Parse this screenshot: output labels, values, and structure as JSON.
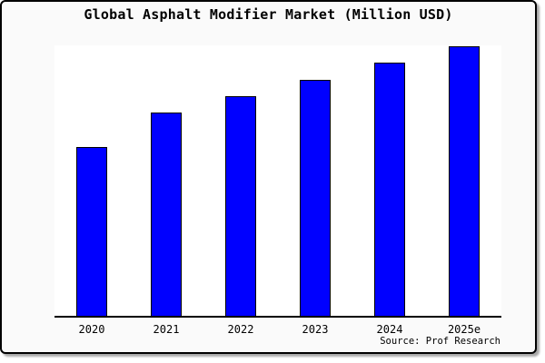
{
  "chart_data": {
    "type": "bar",
    "title": "Global Asphalt Modifier Market (Million USD)",
    "categories": [
      "2020",
      "2021",
      "2022",
      "2023",
      "2024",
      "2025e"
    ],
    "values": [
      62.9,
      75.6,
      81.6,
      87.6,
      94.0,
      100.0
    ],
    "units": "relative index (2025e = 100); chart shows no y-axis scale",
    "xlabel": "",
    "ylabel": "",
    "ylim": [
      0,
      100.5
    ],
    "grid": false,
    "legend": false,
    "y_axis_visible": false,
    "bar_color": "#0000ff",
    "bar_edge_color": "#000000",
    "plot_background": "#ffffff",
    "figure_background": "#fafafa",
    "source_label": "Source: Prof Research"
  }
}
